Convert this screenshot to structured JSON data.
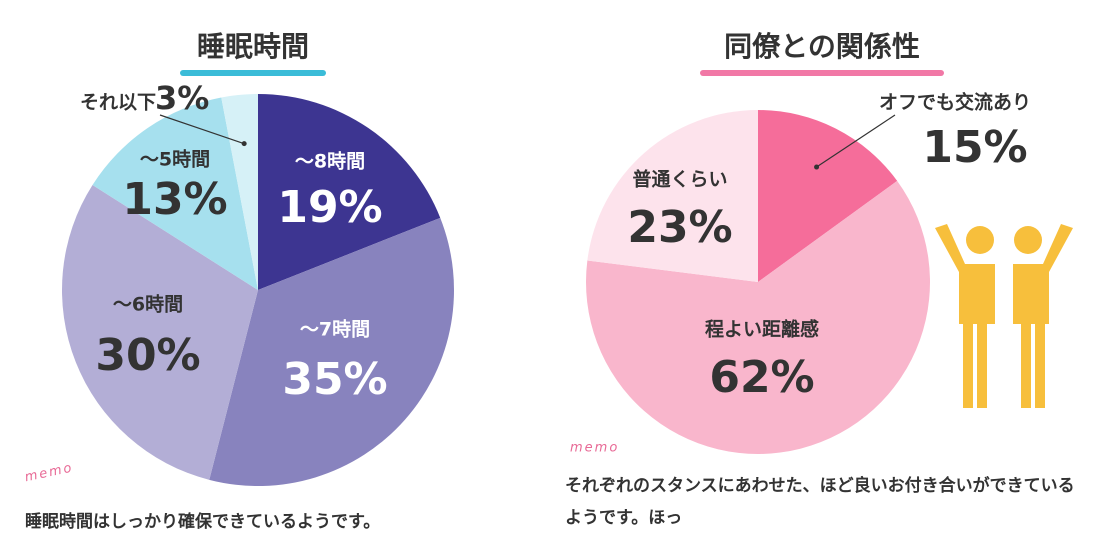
{
  "chart_data": [
    {
      "type": "pie",
      "title": "睡眠時間",
      "categories": [
        "～8時間",
        "～7時間",
        "～6時間",
        "～5時間",
        "それ以下"
      ],
      "values": [
        19,
        35,
        30,
        13,
        3
      ],
      "value_labels": [
        "19%",
        "35%",
        "30%",
        "13%",
        "3%"
      ],
      "colors": [
        "#3d3591",
        "#8883be",
        "#b3aed6",
        "#a6e0ee",
        "#d6f1f7"
      ],
      "memo_label": "memo",
      "caption": "睡眠時間はしっかり確保できているようです。"
    },
    {
      "type": "pie",
      "title": "同僚との関係性",
      "categories": [
        "オフでも交流あり",
        "程よい距離感",
        "普通くらい"
      ],
      "values": [
        15,
        62,
        23
      ],
      "value_labels": [
        "15%",
        "62%",
        "23%"
      ],
      "colors": [
        "#f56d9a",
        "#f9b6cc",
        "#fde3ec"
      ],
      "memo_label": "memo",
      "caption": "それぞれのスタンスにあわせた、ほど良いお付き合いができているようです。ほっ"
    }
  ]
}
